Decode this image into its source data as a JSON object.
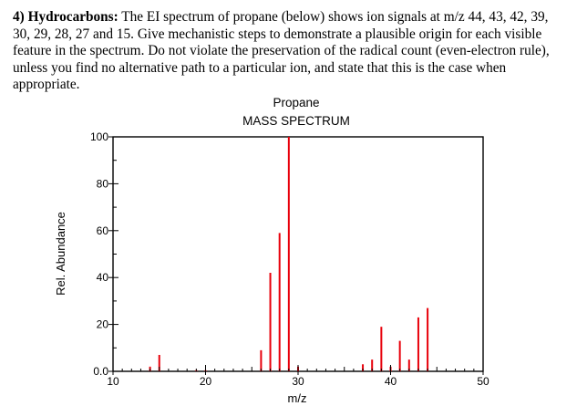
{
  "question": {
    "bold_prefix": "4) Hydrocarbons:",
    "text": " The EI spectrum of propane (below) shows ion signals at m/z 44, 43, 42, 39, 30, 29, 28, 27 and 15. Give mechanistic steps to demonstrate a plausible origin for each visible feature in the spectrum.  Do not violate the preservation of the radical count (even-electron rule), unless you find no alternative path to a particular ion, and state that this is the case when appropriate."
  },
  "chart_data": {
    "type": "bar",
    "title": "Propane",
    "subtitle": "MASS SPECTRUM",
    "xlabel": "m/z",
    "ylabel": "Rel. Abundance",
    "xlim": [
      10,
      50
    ],
    "ylim": [
      0,
      100
    ],
    "x_ticks": [
      "10",
      "20",
      "30",
      "40",
      "50"
    ],
    "y_ticks": [
      "0.0",
      "20",
      "40",
      "60",
      "80",
      "100"
    ],
    "bar_color": "#e8000b",
    "peaks": [
      {
        "mz": 14,
        "value": 2
      },
      {
        "mz": 15,
        "value": 7
      },
      {
        "mz": 19,
        "value": 0.5
      },
      {
        "mz": 20,
        "value": 0.5
      },
      {
        "mz": 26,
        "value": 9
      },
      {
        "mz": 27,
        "value": 42
      },
      {
        "mz": 28,
        "value": 59
      },
      {
        "mz": 29,
        "value": 100
      },
      {
        "mz": 30,
        "value": 2
      },
      {
        "mz": 37,
        "value": 3
      },
      {
        "mz": 38,
        "value": 5
      },
      {
        "mz": 39,
        "value": 19
      },
      {
        "mz": 40,
        "value": 2
      },
      {
        "mz": 41,
        "value": 13
      },
      {
        "mz": 42,
        "value": 5
      },
      {
        "mz": 43,
        "value": 23
      },
      {
        "mz": 44,
        "value": 27
      }
    ]
  }
}
